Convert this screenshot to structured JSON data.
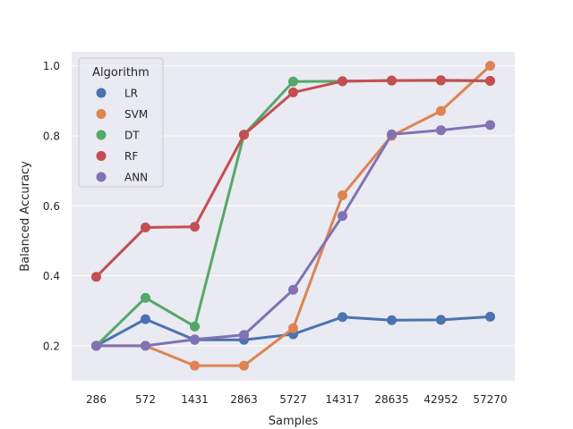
{
  "chart_data": {
    "type": "line",
    "xlabel": "Samples",
    "ylabel": "Balanced Accuracy",
    "categories": [
      "286",
      "572",
      "1431",
      "2863",
      "5727",
      "14317",
      "28635",
      "42952",
      "57270"
    ],
    "ylim": [
      0.1,
      1.04
    ],
    "yticks": [
      0.2,
      0.4,
      0.6,
      0.8,
      1.0
    ],
    "ytick_labels": [
      "0.2",
      "0.4",
      "0.6",
      "0.8",
      "1.0"
    ],
    "grid": true,
    "legend": {
      "title": "Algorithm",
      "placement": "top-left"
    },
    "series": [
      {
        "name": "LR",
        "color": "#4c72b0",
        "values": [
          0.2,
          0.276,
          0.217,
          0.217,
          0.233,
          0.282,
          0.273,
          0.274,
          0.283
        ]
      },
      {
        "name": "SVM",
        "color": "#dd8452",
        "values": [
          0.2,
          0.2,
          0.143,
          0.143,
          0.25,
          0.63,
          0.8,
          0.871,
          1.0
        ]
      },
      {
        "name": "DT",
        "color": "#55a868",
        "values": [
          0.2,
          0.337,
          0.255,
          0.803,
          0.955,
          0.956,
          0.958,
          0.958,
          0.957
        ]
      },
      {
        "name": "RF",
        "color": "#c44e52",
        "values": [
          0.397,
          0.538,
          0.54,
          0.803,
          0.924,
          0.956,
          0.958,
          0.959,
          0.957
        ]
      },
      {
        "name": "ANN",
        "color": "#8172b3",
        "values": [
          0.2,
          0.2,
          0.218,
          0.231,
          0.36,
          0.571,
          0.804,
          0.816,
          0.831
        ]
      }
    ]
  }
}
